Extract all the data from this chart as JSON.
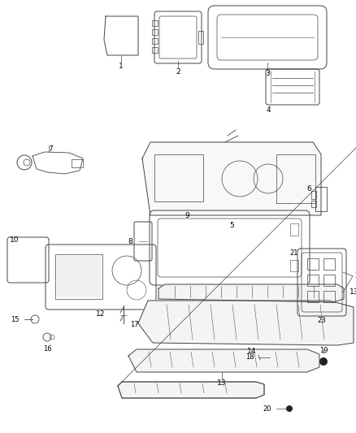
{
  "background_color": "#ffffff",
  "fig_width": 4.38,
  "fig_height": 5.33,
  "dpi": 100
}
